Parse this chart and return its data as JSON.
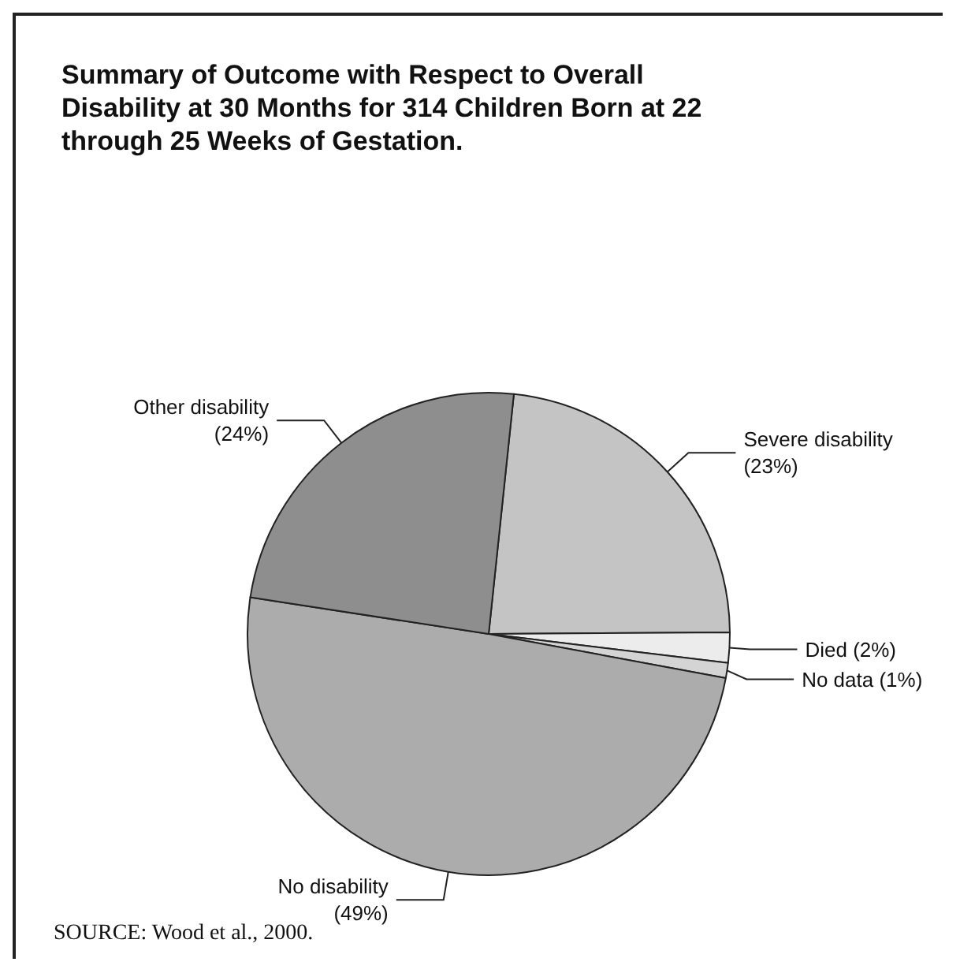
{
  "chart_data": {
    "type": "pie",
    "title": "Summary of Outcome with Respect to Overall Disability at 30 Months for 314 Children Born at 22 through 25 Weeks of Gestation.",
    "categories": [
      "Severe disability",
      "Died",
      "No data",
      "No disability",
      "Other disability"
    ],
    "values": [
      23,
      2,
      1,
      49,
      24
    ],
    "value_labels": [
      "(23%)",
      "(2%)",
      "(1%)",
      "(49%)",
      "(24%)"
    ],
    "colors": [
      "#c4c4c4",
      "#ececec",
      "#d4d4d4",
      "#acacac",
      "#8e8e8e"
    ],
    "annotations": [
      "SOURCE: Wood et al., 2000."
    ],
    "legend": false
  }
}
